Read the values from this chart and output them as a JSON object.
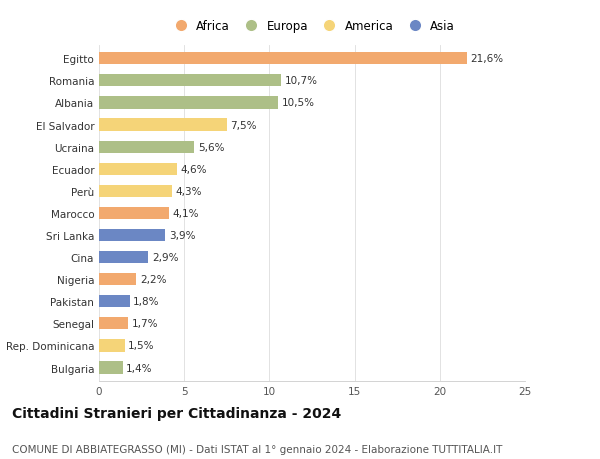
{
  "categories": [
    "Bulgaria",
    "Rep. Dominicana",
    "Senegal",
    "Pakistan",
    "Nigeria",
    "Cina",
    "Sri Lanka",
    "Marocco",
    "Perù",
    "Ecuador",
    "Ucraina",
    "El Salvador",
    "Albania",
    "Romania",
    "Egitto"
  ],
  "values": [
    1.4,
    1.5,
    1.7,
    1.8,
    2.2,
    2.9,
    3.9,
    4.1,
    4.3,
    4.6,
    5.6,
    7.5,
    10.5,
    10.7,
    21.6
  ],
  "labels": [
    "1,4%",
    "1,5%",
    "1,7%",
    "1,8%",
    "2,2%",
    "2,9%",
    "3,9%",
    "4,1%",
    "4,3%",
    "4,6%",
    "5,6%",
    "7,5%",
    "10,5%",
    "10,7%",
    "21,6%"
  ],
  "continents": [
    "Europa",
    "America",
    "Africa",
    "Asia",
    "Africa",
    "Asia",
    "Asia",
    "Africa",
    "America",
    "America",
    "Europa",
    "America",
    "Europa",
    "Europa",
    "Africa"
  ],
  "colors": {
    "Africa": "#F2A96E",
    "Europa": "#ADBF87",
    "America": "#F5D478",
    "Asia": "#6B87C4"
  },
  "legend_order": [
    "Africa",
    "Europa",
    "America",
    "Asia"
  ],
  "title": "Cittadini Stranieri per Cittadinanza - 2024",
  "subtitle": "COMUNE DI ABBIATEGRASSO (MI) - Dati ISTAT al 1° gennaio 2024 - Elaborazione TUTTITALIA.IT",
  "xlim": [
    0,
    25
  ],
  "xticks": [
    0,
    5,
    10,
    15,
    20,
    25
  ],
  "background_color": "#FFFFFF",
  "bar_height": 0.55,
  "title_fontsize": 10,
  "subtitle_fontsize": 7.5,
  "label_fontsize": 7.5,
  "tick_fontsize": 7.5,
  "legend_fontsize": 8.5
}
